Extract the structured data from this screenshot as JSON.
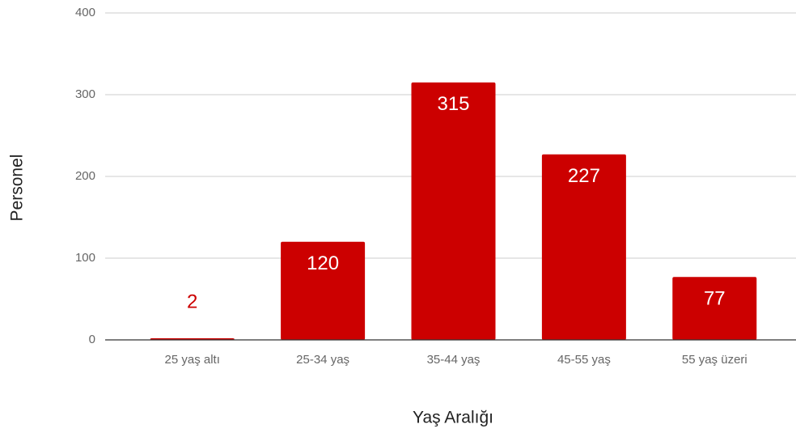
{
  "chart_data": {
    "type": "bar",
    "categories": [
      "25 yaş altı",
      "25-34 yaş",
      "35-44 yaş",
      "45-55 yaş",
      "55 yaş üzeri"
    ],
    "values": [
      2,
      120,
      315,
      227,
      77
    ],
    "color": "#cc0000",
    "x_label": "Yaş Aralığı",
    "y_label": "Personel",
    "ylim": [
      0,
      400
    ],
    "yticks": [
      0,
      100,
      200,
      300,
      400
    ],
    "grid": true
  }
}
